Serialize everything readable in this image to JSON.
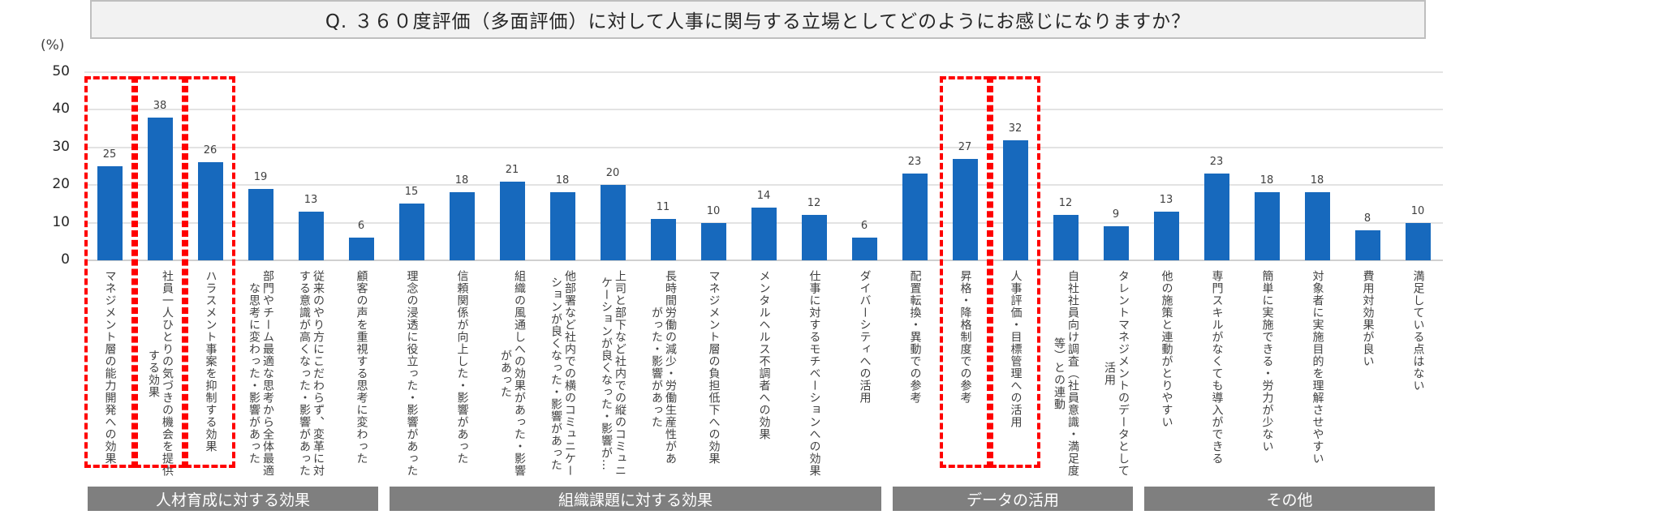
{
  "title": "Q. ３６０度評価（多面評価）に対して人事に関与する立場としてどのようにお感じになりますか？",
  "chart_data": {
    "type": "bar",
    "ylabel": "(%)",
    "ylim": [
      0,
      50
    ],
    "yticks": [
      "0",
      "10",
      "20",
      "30",
      "40",
      "50"
    ],
    "grid": true,
    "bar_color": "#1769bd",
    "highlight_color": "#ff0000",
    "categories": [
      "マネジメント層の能力開発への効果",
      "社員一人ひとりの気づきの機会を提供\nする効果",
      "ハラスメント事案を抑制する効果",
      "部門やチーム最適な思考から全体最適\nな思考に変わった・影響があった",
      "従来のやり方にこだわらず、変革に対\nする意識が高くなった・影響があった",
      "顧客の声を重視する思考に変わった",
      "理念の浸透に役立った・影響があった",
      "信頼関係が向上した・影響があった",
      "組織の風通しへの効果があった・影響\nがあった",
      "他部署など社内での横のコミュニケー\nションが良くなった・影響があった",
      "上司と部下など社内での縦のコミュニ\nケーションが良くなった・影響が…",
      "長時間労働の減少・労働生産性があ\nがった・影響があった",
      "マネジメント層の負担低下への効果",
      "メンタルヘルス不調者への効果",
      "仕事に対するモチベーションへの効果",
      "ダイバーシティへの活用",
      "配置転換・異動での参考",
      "昇格・降格制度での参考",
      "人事評価・目標管理への活用",
      "自社社員向け調査（社員意識・満足度\n等）との連動",
      "タレントマネジメントのデータとして\n活用",
      "他の施策と連動がとりやすい",
      "専門スキルがなくても導入ができる",
      "簡単に実施できる・労力が少ない",
      "対象者に実施目的を理解させやすい",
      "費用対効果が良い",
      "満足している点はない"
    ],
    "values": [
      25,
      38,
      26,
      19,
      13,
      6,
      15,
      18,
      21,
      18,
      20,
      11,
      10,
      14,
      12,
      6,
      23,
      27,
      32,
      12,
      9,
      13,
      23,
      18,
      18,
      8,
      10
    ],
    "highlighted": [
      0,
      1,
      2,
      17,
      18
    ],
    "groups": [
      {
        "label": "人材育成に対する効果",
        "from": 0,
        "to": 5
      },
      {
        "label": "組織課題に対する効果",
        "from": 6,
        "to": 15
      },
      {
        "label": "データの活用",
        "from": 16,
        "to": 20
      },
      {
        "label": "その他",
        "from": 21,
        "to": 26
      }
    ]
  }
}
